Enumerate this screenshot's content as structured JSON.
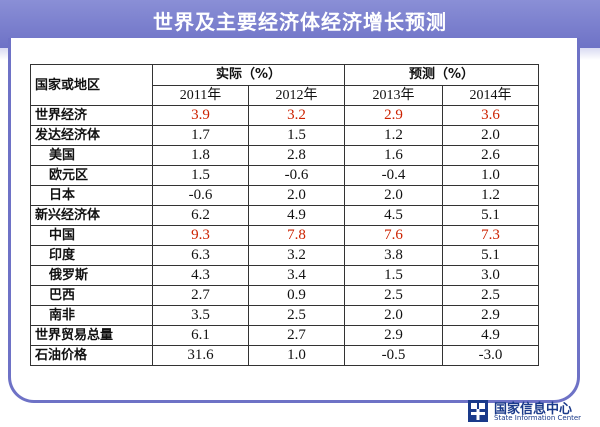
{
  "title": "世界及主要经济体经济增长预测",
  "table": {
    "corner": "国家或地区",
    "group_actual": "实际（%）",
    "group_forecast": "预测（%）",
    "years": [
      "2011年",
      "2012年",
      "2013年",
      "2014年"
    ],
    "rows": [
      {
        "label": "世界经济",
        "sub": false,
        "values": [
          "3.9",
          "3.2",
          "2.9",
          "3.6"
        ],
        "highlight": true
      },
      {
        "label": "发达经济体",
        "sub": false,
        "values": [
          "1.7",
          "1.5",
          "1.2",
          "2.0"
        ],
        "highlight": false
      },
      {
        "label": "美国",
        "sub": true,
        "values": [
          "1.8",
          "2.8",
          "1.6",
          "2.6"
        ],
        "highlight": false
      },
      {
        "label": "欧元区",
        "sub": true,
        "values": [
          "1.5",
          "-0.6",
          "-0.4",
          "1.0"
        ],
        "highlight": false
      },
      {
        "label": "日本",
        "sub": true,
        "values": [
          "-0.6",
          "2.0",
          "2.0",
          "1.2"
        ],
        "highlight": false
      },
      {
        "label": "新兴经济体",
        "sub": false,
        "values": [
          "6.2",
          "4.9",
          "4.5",
          "5.1"
        ],
        "highlight": false
      },
      {
        "label": "中国",
        "sub": true,
        "values": [
          "9.3",
          "7.8",
          "7.6",
          "7.3"
        ],
        "highlight": true
      },
      {
        "label": "印度",
        "sub": true,
        "values": [
          "6.3",
          "3.2",
          "3.8",
          "5.1"
        ],
        "highlight": false
      },
      {
        "label": "俄罗斯",
        "sub": true,
        "values": [
          "4.3",
          "3.4",
          "1.5",
          "3.0"
        ],
        "highlight": false
      },
      {
        "label": "巴西",
        "sub": true,
        "values": [
          "2.7",
          "0.9",
          "2.5",
          "2.5"
        ],
        "highlight": false
      },
      {
        "label": "南非",
        "sub": true,
        "values": [
          "3.5",
          "2.5",
          "2.0",
          "2.9"
        ],
        "highlight": false
      },
      {
        "label": "世界贸易总量",
        "sub": false,
        "values": [
          "6.1",
          "2.7",
          "2.9",
          "4.9"
        ],
        "highlight": false
      },
      {
        "label": "石油价格",
        "sub": false,
        "values": [
          "31.6",
          "1.0",
          "-0.5",
          "-3.0"
        ],
        "highlight": false
      }
    ]
  },
  "logo": {
    "cn": "国家信息中心",
    "en": "State Information Center"
  },
  "colors": {
    "banner": "#6e72c6",
    "highlight": "#cc2200",
    "logo": "#1a3a8a"
  }
}
